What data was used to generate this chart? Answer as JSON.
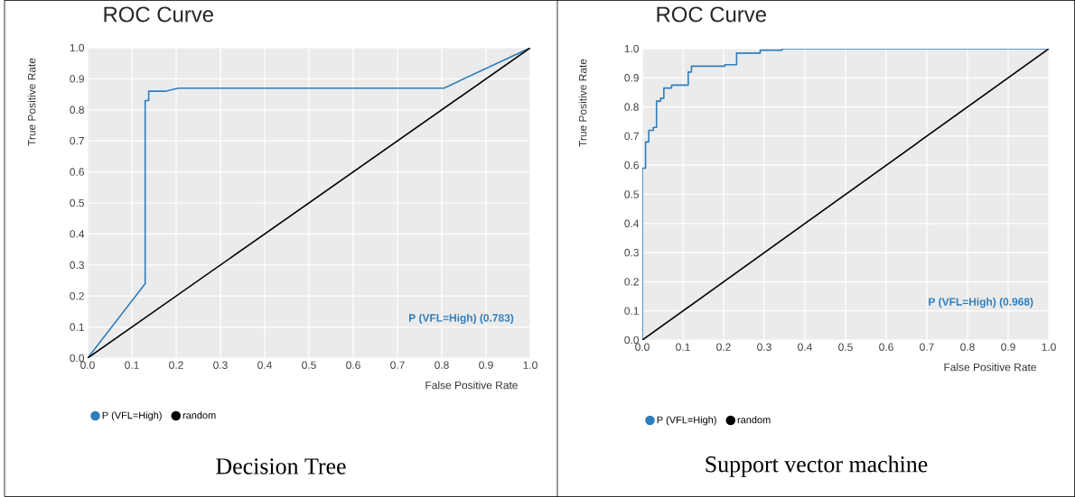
{
  "chart_data": [
    {
      "type": "line",
      "title": "ROC Curve",
      "xlabel": "False Positive Rate",
      "ylabel": "True Positive Rate",
      "series": [
        {
          "name": "P (VFL=High)",
          "color": "#2f7ebc",
          "x": [
            0,
            0.13,
            0.13,
            0.138,
            0.138,
            0.175,
            0.205,
            0.805,
            1
          ],
          "values": [
            0,
            0.24,
            0.83,
            0.83,
            0.86,
            0.86,
            0.87,
            0.87,
            1
          ]
        },
        {
          "name": "random",
          "color": "#000000",
          "x": [
            0,
            1
          ],
          "values": [
            0,
            1
          ]
        }
      ],
      "xlim": [
        0,
        1
      ],
      "ylim": [
        0,
        1
      ],
      "xticks": [
        {
          "value": 0,
          "label": "0.0"
        },
        {
          "value": 0.1,
          "label": "0.1"
        },
        {
          "value": 0.2,
          "label": "0.2"
        },
        {
          "value": 0.3,
          "label": "0.3"
        },
        {
          "value": 0.4,
          "label": "0.4"
        },
        {
          "value": 0.5,
          "label": "0.5"
        },
        {
          "value": 0.6,
          "label": "0.6"
        },
        {
          "value": 0.7,
          "label": "0.7"
        },
        {
          "value": 0.8,
          "label": "0.8"
        },
        {
          "value": 0.9,
          "label": "0.9"
        },
        {
          "value": 1,
          "label": "1.0"
        }
      ],
      "yticks": [
        {
          "value": 0,
          "label": "0.0"
        },
        {
          "value": 0.1,
          "label": "0.1"
        },
        {
          "value": 0.2,
          "label": "0.2"
        },
        {
          "value": 0.3,
          "label": "0.3"
        },
        {
          "value": 0.4,
          "label": "0.4"
        },
        {
          "value": 0.5,
          "label": "0.5"
        },
        {
          "value": 0.6,
          "label": "0.6"
        },
        {
          "value": 0.7,
          "label": "0.7"
        },
        {
          "value": 0.8,
          "label": "0.8"
        },
        {
          "value": 0.9,
          "label": "0.9"
        },
        {
          "value": 1,
          "label": "1.0"
        }
      ],
      "grid": true,
      "legend": "bottom",
      "marker": "none",
      "line_style": "solid",
      "annotations": [
        "P (VFL=High) (0.783)",
        "Decision Tree"
      ]
    },
    {
      "type": "line",
      "title": "ROC Curve",
      "xlabel": "False Positive Rate",
      "ylabel": "True Positive Rate",
      "series": [
        {
          "name": "P (VFL=High)",
          "color": "#2f7ebc",
          "x": [
            0,
            0,
            0.008,
            0.008,
            0.016,
            0.016,
            0.027,
            0.027,
            0.035,
            0.035,
            0.045,
            0.045,
            0.053,
            0.053,
            0.072,
            0.072,
            0.113,
            0.113,
            0.121,
            0.121,
            0.203,
            0.203,
            0.232,
            0.232,
            0.29,
            0.29,
            0.344,
            0.344,
            1
          ],
          "values": [
            0,
            0.59,
            0.59,
            0.68,
            0.68,
            0.72,
            0.72,
            0.73,
            0.73,
            0.82,
            0.82,
            0.83,
            0.83,
            0.865,
            0.865,
            0.875,
            0.875,
            0.92,
            0.92,
            0.94,
            0.94,
            0.945,
            0.945,
            0.985,
            0.985,
            0.995,
            0.995,
            1,
            1
          ]
        },
        {
          "name": "random",
          "color": "#000000",
          "x": [
            0,
            1
          ],
          "values": [
            0,
            1
          ]
        }
      ],
      "xlim": [
        0,
        1
      ],
      "ylim": [
        0,
        1
      ],
      "xticks": [
        {
          "value": 0,
          "label": "0.0"
        },
        {
          "value": 0.1,
          "label": "0.1"
        },
        {
          "value": 0.2,
          "label": "0.2"
        },
        {
          "value": 0.3,
          "label": "0.3"
        },
        {
          "value": 0.4,
          "label": "0.4"
        },
        {
          "value": 0.5,
          "label": "0.5"
        },
        {
          "value": 0.6,
          "label": "0.6"
        },
        {
          "value": 0.7,
          "label": "0.7"
        },
        {
          "value": 0.8,
          "label": "0.8"
        },
        {
          "value": 0.9,
          "label": "0.9"
        },
        {
          "value": 1,
          "label": "1.0"
        }
      ],
      "yticks": [
        {
          "value": 0,
          "label": "0.0"
        },
        {
          "value": 0.1,
          "label": "0.1"
        },
        {
          "value": 0.2,
          "label": "0.2"
        },
        {
          "value": 0.3,
          "label": "0.3"
        },
        {
          "value": 0.4,
          "label": "0.4"
        },
        {
          "value": 0.5,
          "label": "0.5"
        },
        {
          "value": 0.6,
          "label": "0.6"
        },
        {
          "value": 0.7,
          "label": "0.7"
        },
        {
          "value": 0.8,
          "label": "0.8"
        },
        {
          "value": 0.9,
          "label": "0.9"
        },
        {
          "value": 1,
          "label": "1.0"
        }
      ],
      "grid": true,
      "legend": "bottom",
      "marker": "none",
      "line_style": "solid",
      "annotations": [
        "P (VFL=High) (0.968)",
        "Support vector machine"
      ]
    }
  ]
}
